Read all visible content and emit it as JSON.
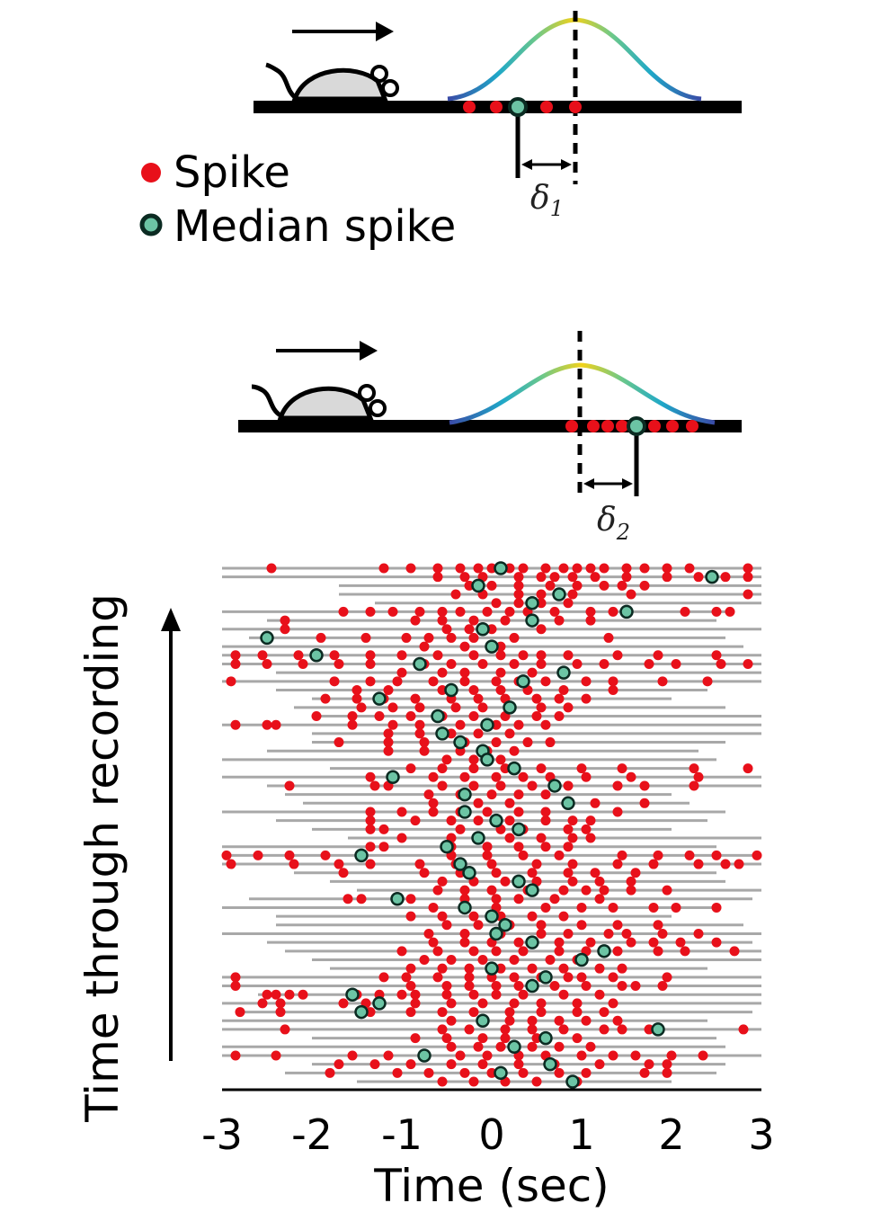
{
  "legend": {
    "spike_label": "Spike",
    "median_label": "Median spike"
  },
  "schematic": {
    "delta1_symbol": "δ",
    "delta1_sub": "1",
    "delta2_symbol": "δ",
    "delta2_sub": "2"
  },
  "colors": {
    "spike": "#e8101a",
    "median_fill": "#6cc4a4",
    "median_stroke": "#0b2b22",
    "trial_line": "#a8a8a8",
    "gaussian_gradient": [
      "#3a4aa6",
      "#1fa8c8",
      "#6cc88a",
      "#f2d21a",
      "#6cc88a",
      "#1fa8c8",
      "#3a4aa6"
    ]
  },
  "chart_data": {
    "type": "scatter",
    "xlabel": "Time (sec)",
    "ylabel": "Time through recording",
    "xlim": [
      -3,
      3
    ],
    "xticks": [
      "-3",
      "-2",
      "-1",
      "0",
      "1",
      "2",
      "3"
    ],
    "trial_count": 60,
    "trials": [
      {
        "extent": [
          -3.0,
          3.0
        ],
        "spikes": [
          -2.45,
          -1.2,
          -0.9,
          -0.6,
          -0.35,
          -0.15,
          0.0,
          0.2,
          0.35,
          0.6,
          0.8,
          0.95,
          1.1,
          1.25,
          1.5,
          1.7,
          1.95,
          2.2,
          2.85
        ],
        "median": 0.1
      },
      {
        "extent": [
          -3.0,
          3.0
        ],
        "spikes": [
          -0.6,
          -0.3,
          -0.1,
          0.3,
          0.55,
          0.7,
          0.9,
          1.15,
          1.5,
          1.95,
          2.3,
          2.6,
          2.85
        ],
        "median": 2.45
      },
      {
        "extent": [
          -1.7,
          3.0
        ],
        "spikes": [
          -0.25,
          0.0,
          0.3,
          0.65,
          0.95,
          1.25,
          1.45,
          1.7
        ],
        "median": -0.15
      },
      {
        "extent": [
          -1.7,
          3.0
        ],
        "spikes": [
          -0.4,
          -0.1,
          0.3,
          0.55,
          0.9,
          1.55,
          2.85
        ],
        "median": 0.75
      },
      {
        "extent": [
          -1.3,
          3.0
        ],
        "spikes": [
          0.05,
          0.3,
          0.55,
          0.85
        ],
        "median": 0.45
      },
      {
        "extent": [
          -3.0,
          2.7
        ],
        "spikes": [
          -1.65,
          -1.35,
          -1.1,
          -0.8,
          -0.55,
          -0.35,
          -0.05,
          0.2,
          0.4,
          0.7,
          1.1,
          1.35,
          1.5,
          2.15,
          2.5,
          2.65
        ],
        "median": 1.5
      },
      {
        "extent": [
          -2.5,
          2.5
        ],
        "spikes": [
          -2.3,
          -0.85,
          -0.55,
          -0.2,
          0.15,
          0.45,
          0.75,
          1.1
        ],
        "median": 0.45
      },
      {
        "extent": [
          -3.0,
          3.0
        ],
        "spikes": [
          -2.3,
          -0.5,
          -0.25,
          0.0,
          0.55
        ],
        "median": -0.1
      },
      {
        "extent": [
          -2.7,
          2.6
        ],
        "spikes": [
          -1.9,
          -1.4,
          -0.95,
          -0.7,
          -0.45,
          -0.2,
          0.25,
          1.3
        ],
        "median": -2.5
      },
      {
        "extent": [
          -3.0,
          2.8
        ],
        "spikes": [
          -0.75,
          -0.3,
          0.1
        ],
        "median": 0.0
      },
      {
        "extent": [
          -3.0,
          3.0
        ],
        "spikes": [
          -2.85,
          -2.55,
          -2.15,
          -1.75,
          -1.35,
          -1.0,
          -0.6,
          -0.2,
          0.1,
          0.35,
          0.55,
          0.85,
          1.4,
          1.85,
          2.5
        ],
        "median": -1.95
      },
      {
        "extent": [
          -3.0,
          3.0
        ],
        "spikes": [
          -2.85,
          -2.5,
          -2.1,
          -1.7,
          -1.35,
          -0.75,
          -0.45,
          -0.1,
          0.25,
          0.55,
          0.95,
          1.25,
          1.75,
          2.05,
          2.55,
          2.85
        ],
        "median": -0.8
      },
      {
        "extent": [
          -2.4,
          3.0
        ],
        "spikes": [
          -1.0,
          -0.55,
          -0.3,
          0.1,
          0.45,
          0.8
        ],
        "median": 0.8
      },
      {
        "extent": [
          -3.0,
          3.0
        ],
        "spikes": [
          -2.9,
          -1.75,
          -1.35,
          -1.05,
          -0.65,
          -0.3,
          0.05,
          0.3,
          0.6,
          1.05,
          1.35,
          1.9,
          2.4
        ],
        "median": 0.35
      },
      {
        "extent": [
          -2.4,
          2.4
        ],
        "spikes": [
          -1.5,
          -1.15,
          -0.55,
          -0.2,
          0.1,
          0.4,
          0.8,
          1.35
        ],
        "median": -0.45
      },
      {
        "extent": [
          -2.0,
          2.0
        ],
        "spikes": [
          -1.85,
          -1.5,
          -1.2,
          -0.85,
          -0.45,
          -0.15,
          0.15,
          0.5,
          0.75,
          1.05
        ],
        "median": -1.25
      },
      {
        "extent": [
          -2.2,
          2.6
        ],
        "spikes": [
          -1.45,
          -1.1,
          -0.8,
          -0.4,
          -0.1,
          0.2,
          0.55,
          0.85
        ],
        "median": 0.2
      },
      {
        "extent": [
          -2.0,
          3.0
        ],
        "spikes": [
          -1.95,
          -1.55,
          -1.25,
          -0.9,
          -0.55,
          -0.2,
          0.15,
          0.5,
          0.75
        ],
        "median": -0.6
      },
      {
        "extent": [
          -3.0,
          3.0
        ],
        "spikes": [
          -2.85,
          -2.5,
          -2.4,
          -1.55,
          -1.1,
          -0.8,
          -0.35,
          0.05,
          0.3,
          0.6
        ],
        "median": -0.05
      },
      {
        "extent": [
          -2.0,
          3.0
        ],
        "spikes": [
          -1.15,
          -0.8,
          -0.45,
          -0.15,
          0.2
        ],
        "median": -0.55
      },
      {
        "extent": [
          -2.0,
          2.6
        ],
        "spikes": [
          -1.7,
          -1.15,
          -0.75,
          -0.3,
          0.05,
          0.4,
          0.65
        ],
        "median": -0.35
      },
      {
        "extent": [
          -2.5,
          2.3
        ],
        "spikes": [
          -1.15,
          -0.75,
          -0.35,
          -0.05,
          0.25
        ],
        "median": -0.1
      },
      {
        "extent": [
          -3.0,
          2.5
        ],
        "spikes": [
          -0.5,
          -0.2,
          0.1
        ],
        "median": -0.05
      },
      {
        "extent": [
          -1.8,
          2.2
        ],
        "spikes": [
          -0.9,
          -0.55,
          -0.2,
          0.15,
          0.55,
          1.0,
          1.45,
          2.25,
          2.85
        ],
        "median": 0.25
      },
      {
        "extent": [
          -3.0,
          3.0
        ],
        "spikes": [
          -1.35,
          -1.1,
          -0.65,
          -0.3,
          0.05,
          0.35,
          0.65,
          1.05,
          1.55,
          2.3
        ],
        "median": -1.1
      },
      {
        "extent": [
          -2.5,
          3.0
        ],
        "spikes": [
          -2.25,
          -1.3,
          -1.15,
          -0.55,
          -0.2,
          0.1,
          0.45,
          0.85,
          1.4,
          1.7,
          2.25
        ],
        "median": 0.7
      },
      {
        "extent": [
          -2.3,
          2.0
        ],
        "spikes": [
          -0.7,
          -0.35,
          0.0,
          0.3,
          0.6
        ],
        "median": -0.3
      },
      {
        "extent": [
          -2.1,
          2.2
        ],
        "spikes": [
          -0.65,
          -0.15,
          0.2,
          0.85,
          1.15,
          1.7
        ],
        "median": 0.85
      },
      {
        "extent": [
          -3.0,
          2.6
        ],
        "spikes": [
          -1.35,
          -1.0,
          -0.65,
          -0.35,
          -0.05,
          0.3,
          0.6,
          1.4
        ],
        "median": -0.3
      },
      {
        "extent": [
          -2.4,
          2.4
        ],
        "spikes": [
          -1.35,
          -0.85,
          -0.45,
          -0.15,
          0.2,
          0.6,
          0.9,
          1.1
        ],
        "median": 0.05
      },
      {
        "extent": [
          -2.0,
          2.0
        ],
        "spikes": [
          -1.35,
          -1.2,
          -0.35,
          0.1,
          0.35,
          0.85,
          1.05
        ],
        "median": 0.3
      },
      {
        "extent": [
          -1.6,
          3.0
        ],
        "spikes": [
          -1.0,
          -0.45,
          -0.15,
          0.2,
          0.55,
          0.9,
          1.1
        ],
        "median": -0.15
      },
      {
        "extent": [
          -3.0,
          2.5
        ],
        "spikes": [
          -1.35,
          -1.2,
          -0.45,
          -0.05,
          0.3,
          0.6,
          0.85
        ],
        "median": -0.5
      },
      {
        "extent": [
          -3.0,
          3.0
        ],
        "spikes": [
          -2.95,
          -2.6,
          -2.25,
          -1.85,
          -0.45,
          -0.05,
          0.35,
          0.75,
          1.45,
          1.85,
          2.2,
          2.5,
          2.95
        ],
        "median": -1.45
      },
      {
        "extent": [
          -3.0,
          3.0
        ],
        "spikes": [
          -2.9,
          -2.2,
          -1.7,
          -1.35,
          -0.8,
          -0.4,
          0.0,
          0.5,
          0.9,
          1.4,
          1.8,
          2.3,
          2.6,
          2.75
        ],
        "median": -0.35
      },
      {
        "extent": [
          -2.2,
          2.5
        ],
        "spikes": [
          -1.65,
          -0.75,
          -0.35,
          0.05,
          0.45,
          0.85,
          1.15,
          1.6
        ],
        "median": -0.25
      },
      {
        "extent": [
          -1.8,
          2.6
        ],
        "spikes": [
          -0.55,
          -0.2,
          0.15,
          0.5,
          0.9,
          1.2,
          1.55
        ],
        "median": 0.3
      },
      {
        "extent": [
          -1.5,
          3.0
        ],
        "spikes": [
          -0.6,
          -0.3,
          0.0,
          0.4,
          0.8,
          1.05,
          1.25,
          1.55,
          1.95
        ],
        "median": 0.45
      },
      {
        "extent": [
          -2.7,
          2.9
        ],
        "spikes": [
          -1.6,
          -1.45,
          -0.9,
          -0.3,
          0.05,
          0.3,
          0.7,
          1.2
        ],
        "median": -1.05
      },
      {
        "extent": [
          -3.0,
          2.5
        ],
        "spikes": [
          -0.65,
          -0.3,
          0.05,
          0.6,
          1.0,
          1.35,
          1.8,
          2.05,
          2.5
        ],
        "median": -0.3
      },
      {
        "extent": [
          -2.4,
          2.0
        ],
        "spikes": [
          -0.9,
          -0.55,
          -0.2,
          0.1,
          0.45,
          0.8
        ],
        "median": 0.0
      },
      {
        "extent": [
          -2.4,
          2.8
        ],
        "spikes": [
          -0.5,
          -0.15,
          0.2,
          0.55,
          1.0,
          1.4,
          1.85
        ],
        "median": 0.15
      },
      {
        "extent": [
          -3.0,
          3.0
        ],
        "spikes": [
          -0.7,
          -0.3,
          0.1,
          0.55,
          0.85,
          1.3,
          1.5,
          1.9,
          2.3
        ],
        "median": 0.05
      },
      {
        "extent": [
          -2.5,
          2.9
        ],
        "spikes": [
          -0.65,
          -0.3,
          0.0,
          0.3,
          0.75,
          1.1,
          1.55,
          1.8,
          2.1,
          2.5
        ],
        "median": 0.45
      },
      {
        "extent": [
          -2.3,
          3.0
        ],
        "spikes": [
          -1.0,
          -0.6,
          -0.2,
          0.05,
          0.35,
          0.75,
          1.05,
          1.4,
          1.85,
          2.15,
          2.7
        ],
        "median": 1.25
      },
      {
        "extent": [
          -2.0,
          3.0
        ],
        "spikes": [
          -0.75,
          -0.45,
          -0.1,
          0.25,
          0.65,
          0.95
        ],
        "median": 1.0
      },
      {
        "extent": [
          -1.8,
          2.4
        ],
        "spikes": [
          -0.9,
          -0.55,
          -0.25,
          0.1,
          0.45,
          0.8,
          1.2,
          1.45
        ],
        "median": 0.0
      },
      {
        "extent": [
          -3.0,
          3.0
        ],
        "spikes": [
          -2.85,
          -1.2,
          -0.95,
          -0.6,
          -0.25,
          0.0,
          0.25,
          0.55,
          0.85,
          1.0,
          1.35,
          1.95
        ],
        "median": 0.6
      },
      {
        "extent": [
          -3.0,
          3.0
        ],
        "spikes": [
          -2.85,
          -0.9,
          -0.5,
          -0.25,
          0.05,
          0.3,
          0.7,
          1.05,
          1.45,
          1.6,
          1.9
        ],
        "median": 0.45
      },
      {
        "extent": [
          -2.6,
          3.0
        ],
        "spikes": [
          -2.5,
          -2.4,
          -2.25,
          -2.1,
          -1.5,
          -1.25,
          -1.0,
          -0.85,
          -0.5,
          -0.2,
          0.05,
          0.35,
          0.8,
          1.2
        ],
        "median": -1.55
      },
      {
        "extent": [
          -3.0,
          3.0
        ],
        "spikes": [
          -2.55,
          -2.35,
          -1.65,
          -1.4,
          -0.85,
          -0.45,
          -0.1,
          0.25,
          0.55,
          0.95,
          1.35
        ],
        "median": -1.25
      },
      {
        "extent": [
          -2.8,
          2.9
        ],
        "spikes": [
          -2.8,
          -2.35,
          -1.35,
          -0.9,
          -0.55,
          -0.2,
          0.2,
          0.55,
          0.95,
          1.25
        ],
        "median": -1.45
      },
      {
        "extent": [
          -3.0,
          2.4
        ],
        "spikes": [
          -0.45,
          -0.1,
          0.2,
          0.45,
          0.75,
          1.05,
          1.4
        ],
        "median": -0.1
      },
      {
        "extent": [
          -3.0,
          3.0
        ],
        "spikes": [
          -2.3,
          -0.55,
          -0.25,
          0.15,
          0.45,
          0.8,
          1.25,
          1.45,
          1.75,
          2.8
        ],
        "median": 1.85
      },
      {
        "extent": [
          -2.0,
          2.5
        ],
        "spikes": [
          -0.85,
          -0.5,
          -0.1,
          0.15,
          0.5,
          0.95
        ],
        "median": 0.6
      },
      {
        "extent": [
          -3.0,
          2.6
        ],
        "spikes": [
          -0.45,
          -0.15,
          0.1,
          0.45,
          0.75,
          1.1
        ],
        "median": 0.25
      },
      {
        "extent": [
          -3.0,
          3.0
        ],
        "spikes": [
          -2.85,
          -2.4,
          -1.55,
          -1.15,
          -0.75,
          -0.35,
          -0.05,
          0.3,
          0.6,
          1.0,
          1.35,
          1.6,
          2.0,
          2.35
        ],
        "median": -0.75
      },
      {
        "extent": [
          -2.0,
          2.6
        ],
        "spikes": [
          -1.7,
          -1.3,
          -0.9,
          -0.45,
          -0.1,
          0.3,
          0.7,
          1.2,
          1.75,
          1.95
        ],
        "median": 0.65
      },
      {
        "extent": [
          -2.3,
          2.5
        ],
        "spikes": [
          -1.8,
          -1.05,
          -0.7,
          -0.3,
          0.0,
          0.35,
          0.75,
          1.05,
          1.7,
          1.95
        ],
        "median": 0.1
      },
      {
        "extent": [
          -1.5,
          2.0
        ],
        "spikes": [
          -0.55,
          -0.2,
          0.15,
          0.5,
          0.95
        ],
        "median": 0.9
      }
    ]
  }
}
